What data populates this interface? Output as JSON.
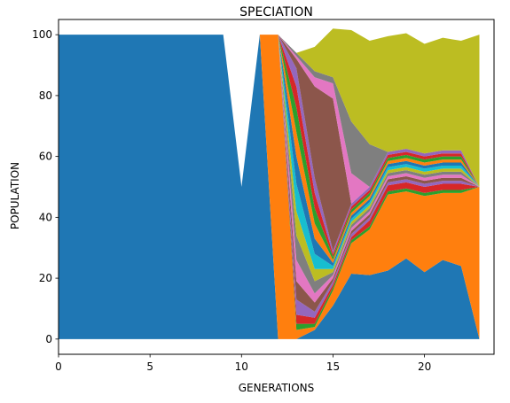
{
  "chart_data": {
    "type": "area",
    "stacked": true,
    "title": "SPECIATION",
    "xlabel": "GENERATIONS",
    "ylabel": "POPULATION",
    "xlim": [
      0,
      23.8
    ],
    "ylim": [
      -5,
      105
    ],
    "xticks": [
      0,
      5,
      10,
      15,
      20
    ],
    "yticks": [
      0,
      20,
      40,
      60,
      80,
      100
    ],
    "grid": false,
    "x": [
      0,
      1,
      2,
      3,
      4,
      5,
      6,
      7,
      8,
      9,
      10,
      11,
      12,
      13,
      14,
      15,
      16,
      17,
      18,
      19,
      20,
      21,
      22,
      23
    ],
    "series": [
      {
        "color": "#1f77b4",
        "values": [
          100,
          100,
          100,
          100,
          100,
          100,
          100,
          100,
          100,
          100,
          50,
          100,
          0,
          0,
          3,
          11,
          21.5,
          21,
          22.5,
          26.5,
          22,
          26,
          24,
          0
        ]
      },
      {
        "color": "#ff7f0e",
        "values": [
          0,
          0,
          0,
          0,
          0,
          0,
          0,
          0,
          0,
          0,
          0,
          0,
          100,
          3,
          1,
          5,
          10,
          15,
          25,
          22,
          25,
          22,
          24,
          50
        ]
      },
      {
        "color": "#2ca02c",
        "values": [
          0,
          0,
          0,
          0,
          0,
          0,
          0,
          0,
          0,
          0,
          0,
          0,
          0,
          2,
          1,
          1,
          1,
          1,
          1,
          1,
          1,
          1,
          1,
          0
        ]
      },
      {
        "color": "#d62728",
        "values": [
          0,
          0,
          0,
          0,
          0,
          0,
          0,
          0,
          0,
          0,
          0,
          0,
          0,
          3,
          2,
          1,
          1,
          2,
          2,
          2,
          2,
          2,
          2,
          0
        ]
      },
      {
        "color": "#9467bd",
        "values": [
          0,
          0,
          0,
          0,
          0,
          0,
          0,
          0,
          0,
          0,
          0,
          0,
          0,
          5,
          2,
          1,
          1,
          1,
          1,
          1,
          1,
          1,
          1,
          0
        ]
      },
      {
        "color": "#8c564b",
        "values": [
          0,
          0,
          0,
          0,
          0,
          0,
          0,
          0,
          0,
          0,
          0,
          0,
          0,
          6,
          3,
          1,
          1,
          1,
          1,
          1,
          1,
          1,
          1,
          0
        ]
      },
      {
        "color": "#e377c2",
        "values": [
          0,
          0,
          0,
          0,
          0,
          0,
          0,
          0,
          0,
          0,
          0,
          0,
          0,
          7,
          3,
          1,
          1,
          1,
          1,
          1,
          1,
          1,
          1,
          0
        ]
      },
      {
        "color": "#7f7f7f",
        "values": [
          0,
          0,
          0,
          0,
          0,
          0,
          0,
          0,
          0,
          0,
          0,
          0,
          0,
          8,
          4,
          1,
          1,
          1,
          1,
          1,
          1,
          1,
          1,
          0
        ]
      },
      {
        "color": "#bcbd22",
        "values": [
          0,
          0,
          0,
          0,
          0,
          0,
          0,
          0,
          0,
          0,
          0,
          0,
          0,
          8,
          4,
          1,
          1,
          1,
          1,
          1,
          1,
          1,
          1,
          0
        ]
      },
      {
        "color": "#17becf",
        "values": [
          0,
          0,
          0,
          0,
          0,
          0,
          0,
          0,
          0,
          0,
          0,
          0,
          0,
          9,
          5,
          1,
          1,
          1,
          1,
          1,
          1,
          1,
          1,
          0
        ]
      },
      {
        "color": "#1f77b4",
        "values": [
          0,
          0,
          0,
          0,
          0,
          0,
          0,
          0,
          0,
          0,
          0,
          0,
          0,
          9,
          5,
          1,
          1,
          1,
          1,
          1,
          1,
          1,
          1,
          0
        ]
      },
      {
        "color": "#ff7f0e",
        "values": [
          0,
          0,
          0,
          0,
          0,
          0,
          0,
          0,
          0,
          0,
          0,
          0,
          0,
          8,
          5,
          1,
          1,
          1,
          1,
          1,
          1,
          1,
          1,
          0
        ]
      },
      {
        "color": "#2ca02c",
        "values": [
          0,
          0,
          0,
          0,
          0,
          0,
          0,
          0,
          0,
          0,
          0,
          0,
          0,
          8,
          5,
          1,
          1,
          1,
          1,
          1,
          1,
          1,
          1,
          0
        ]
      },
      {
        "color": "#d62728",
        "values": [
          0,
          0,
          0,
          0,
          0,
          0,
          0,
          0,
          0,
          0,
          0,
          0,
          0,
          7,
          5,
          1,
          1,
          1,
          1,
          1,
          1,
          1,
          1,
          0
        ]
      },
      {
        "color": "#9467bd",
        "values": [
          0,
          0,
          0,
          0,
          0,
          0,
          0,
          0,
          0,
          0,
          0,
          0,
          0,
          6,
          5,
          1,
          1,
          1,
          1,
          1,
          1,
          1,
          1,
          0
        ]
      },
      {
        "color": "#8c564b",
        "values": [
          0,
          0,
          0,
          0,
          0,
          0,
          0,
          0,
          0,
          0,
          0,
          0,
          0,
          3,
          30,
          50,
          0,
          0,
          0,
          0,
          0,
          0,
          0,
          0
        ]
      },
      {
        "color": "#e377c2",
        "values": [
          0,
          0,
          0,
          0,
          0,
          0,
          0,
          0,
          0,
          0,
          0,
          0,
          0,
          1,
          3,
          5,
          10,
          0,
          0,
          0,
          0,
          0,
          0,
          0
        ]
      },
      {
        "color": "#7f7f7f",
        "values": [
          0,
          0,
          0,
          0,
          0,
          0,
          0,
          0,
          0,
          0,
          0,
          0,
          0,
          1,
          2,
          2,
          17,
          14,
          0,
          0,
          0,
          0,
          0,
          0
        ]
      },
      {
        "color": "#bcbd22",
        "values": [
          0,
          0,
          0,
          0,
          0,
          0,
          0,
          0,
          0,
          0,
          0,
          0,
          0,
          0,
          8,
          16,
          30,
          34,
          38,
          38,
          36,
          37,
          36,
          50
        ]
      }
    ]
  }
}
